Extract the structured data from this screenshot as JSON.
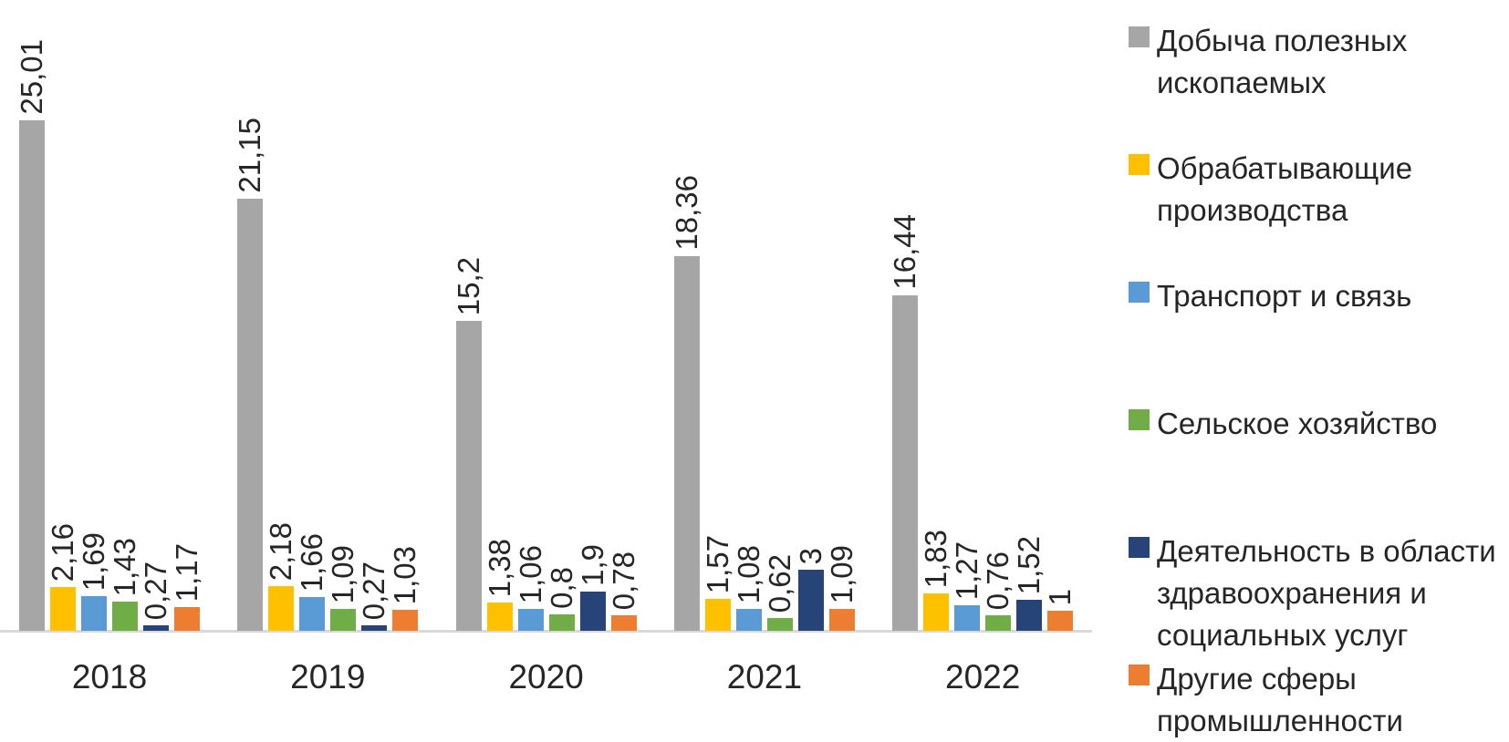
{
  "colors": {
    "axis_line": "#D9D9D9",
    "text": "#262626",
    "background": "#FFFFFF"
  },
  "chart_data": {
    "type": "bar",
    "title": "",
    "xlabel": "",
    "ylabel": "",
    "categories": [
      "2018",
      "2019",
      "2020",
      "2021",
      "2022"
    ],
    "series": [
      {
        "name": "Добыча полезных ископаемых",
        "color": "#A6A6A6",
        "values": [
          25.01,
          21.15,
          15.2,
          18.36,
          16.44
        ],
        "labels": [
          "25,01",
          "21,15",
          "15,2",
          "18,36",
          "16,44"
        ],
        "legend_lines": [
          "Добыча полезных",
          "ископаемых"
        ]
      },
      {
        "name": "Обрабатывающие производства",
        "color": "#FFC000",
        "values": [
          2.16,
          2.18,
          1.38,
          1.57,
          1.83
        ],
        "labels": [
          "2,16",
          "2,18",
          "1,38",
          "1,57",
          "1,83"
        ],
        "legend_lines": [
          "Обрабатывающие",
          "производства"
        ]
      },
      {
        "name": "Транспорт и связь",
        "color": "#5B9BD5",
        "values": [
          1.69,
          1.66,
          1.06,
          1.08,
          1.27
        ],
        "labels": [
          "1,69",
          "1,66",
          "1,06",
          "1,08",
          "1,27"
        ],
        "legend_lines": [
          "Транспорт и связь"
        ]
      },
      {
        "name": "Сельское хозяйство",
        "color": "#70AD47",
        "values": [
          1.43,
          1.09,
          0.8,
          0.62,
          0.76
        ],
        "labels": [
          "1,43",
          "1,09",
          "0,8",
          "0,62",
          "0,76"
        ],
        "legend_lines": [
          "Сельское хозяйство"
        ]
      },
      {
        "name": "Деятельность в области здравоохранения и социальных услуг",
        "color": "#264478",
        "values": [
          0.27,
          0.27,
          1.9,
          3,
          1.52
        ],
        "labels": [
          "0,27",
          "0,27",
          "1,9",
          "3",
          "1,52"
        ],
        "legend_lines": [
          "Деятельность в области",
          "здравоохранения и",
          "социальных услуг"
        ]
      },
      {
        "name": "Другие сферы промышленности",
        "color": "#ED7D31",
        "values": [
          1.17,
          1.03,
          0.78,
          1.09,
          1
        ],
        "labels": [
          "1,17",
          "1,03",
          "0,78",
          "1,09",
          "1"
        ],
        "legend_lines": [
          "Другие сферы",
          "промышленности"
        ]
      }
    ],
    "ylim": [
      0,
      25.5
    ],
    "grid": false,
    "axis": "x-only",
    "data_labels": "rotated-vertical-above-bars",
    "legend_position": "right"
  }
}
